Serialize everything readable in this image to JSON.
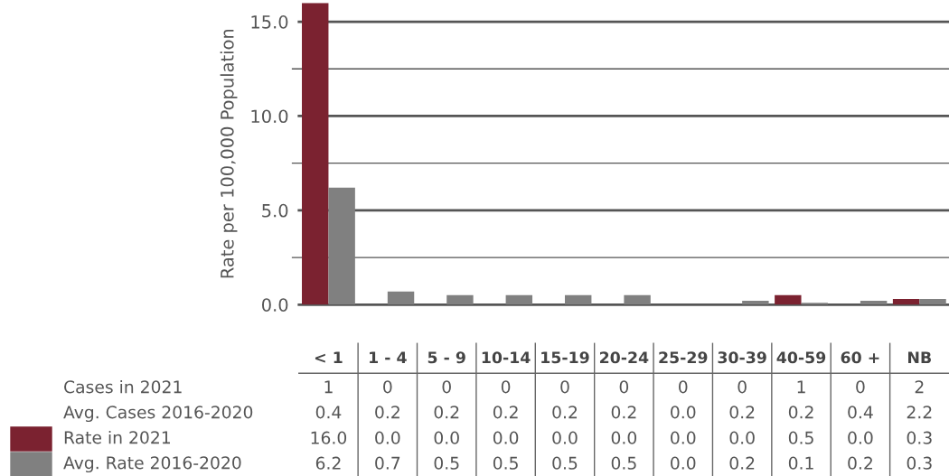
{
  "chart_data": [
    {
      "type": "bar",
      "ylabel": "Rate per 100,000 Population",
      "categories": [
        "< 1",
        "1 - 4",
        "5 - 9",
        "10-14",
        "15-19",
        "20-24",
        "25-29",
        "30-39",
        "40-59",
        "60 +",
        "NB"
      ],
      "series": [
        {
          "name": "Rate in 2021",
          "color": "#7b2230",
          "values": [
            16.0,
            0.0,
            0.0,
            0.0,
            0.0,
            0.0,
            0.0,
            0.0,
            0.5,
            0.0,
            0.3
          ],
          "value_labels": [
            "16.0",
            "0.0",
            "0.0",
            "0.0",
            "0.0",
            "0.0",
            "0.0",
            "0.0",
            "0.5",
            "0.0",
            "0.3"
          ]
        },
        {
          "name": "Avg. Rate 2016-2020",
          "color": "#808080",
          "values": [
            6.2,
            0.7,
            0.5,
            0.5,
            0.5,
            0.5,
            0.0,
            0.2,
            0.1,
            0.2,
            0.3
          ],
          "value_labels": [
            "6.2",
            "0.7",
            "0.5",
            "0.5",
            "0.5",
            "0.5",
            "0.0",
            "0.2",
            "0.1",
            "0.2",
            "0.3"
          ]
        }
      ],
      "ylim": [
        0,
        16.0
      ],
      "yticks": [
        {
          "value": 0,
          "label": "0.0"
        },
        {
          "value": 2.5,
          "label": null
        },
        {
          "value": 5,
          "label": "5.0"
        },
        {
          "value": 7.5,
          "label": null
        },
        {
          "value": 10,
          "label": "10.0"
        },
        {
          "value": 12.5,
          "label": null
        },
        {
          "value": 15,
          "label": "15.0"
        }
      ],
      "grid": "y",
      "legend": "bottom left"
    },
    {
      "type": "other",
      "annotations": [
        "Cases in 2021",
        "1",
        "0",
        "0",
        "0",
        "0",
        "0",
        "0",
        "0",
        "1",
        "0",
        "2",
        "Avg. Cases 2016-2020",
        "0.4",
        "0.2",
        "0.2",
        "0.2",
        "0.2",
        "0.2",
        "0.0",
        "0.2",
        "0.2",
        "0.4",
        "2.2"
      ]
    }
  ]
}
